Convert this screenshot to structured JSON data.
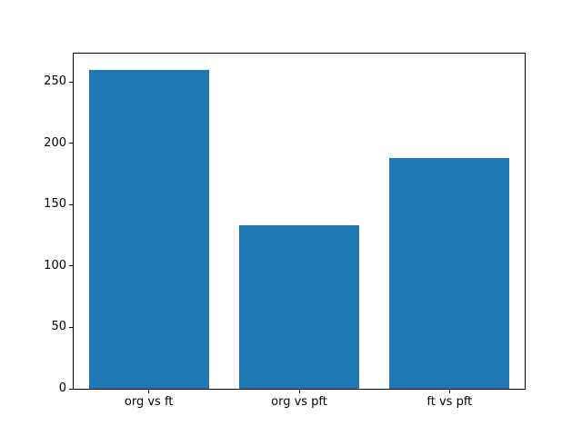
{
  "chart_data": {
    "type": "bar",
    "categories": [
      "org vs ft",
      "org vs pft",
      "ft vs pft"
    ],
    "values": [
      260,
      133,
      188
    ],
    "title": "",
    "xlabel": "",
    "ylabel": "",
    "ylim": [
      0,
      273
    ],
    "yticks": [
      0,
      50,
      100,
      150,
      200,
      250
    ],
    "bar_color": "#1f77b4",
    "background_color": "#ffffff",
    "axes_edge_color": "#000000",
    "grid": false,
    "legend": "none"
  }
}
